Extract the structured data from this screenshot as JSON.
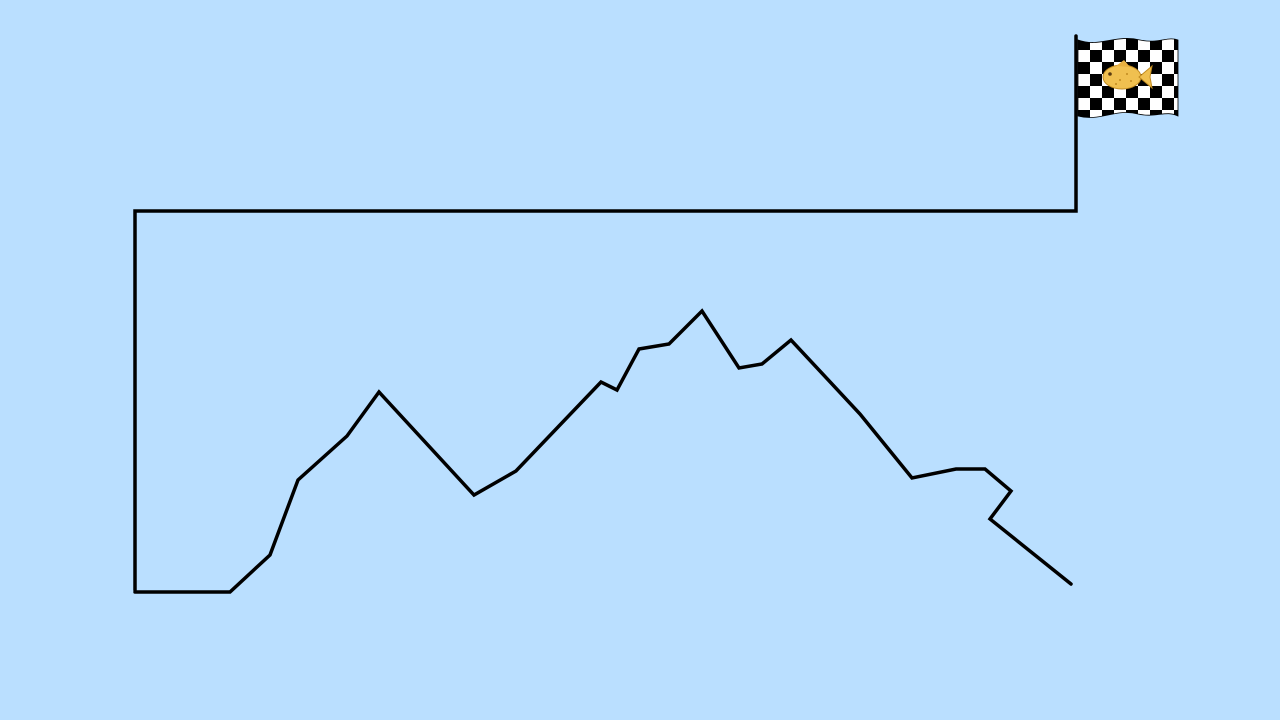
{
  "scene": {
    "background_color": "#badfff",
    "path_color": "#000000",
    "elements": {
      "path": "course-path",
      "goal": "checkered-finish-flag",
      "goal_emblem": "fish-icon"
    },
    "flag": {
      "pattern": "checkered",
      "colors": [
        "#000000",
        "#ffffff"
      ],
      "emblem": "fish-icon",
      "emblem_color": "#f0c050"
    }
  }
}
